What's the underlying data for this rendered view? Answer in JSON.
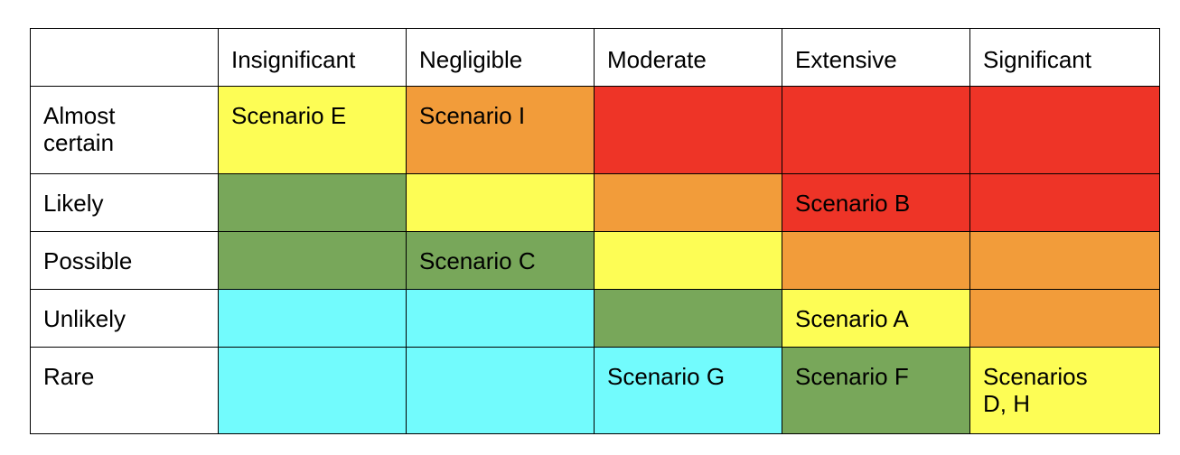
{
  "colors": {
    "red": "#ee3427",
    "orange": "#f29c3a",
    "yellow": "#fdfd55",
    "green": "#78a75a",
    "cyan": "#72fbfd",
    "white": "#ffffff"
  },
  "matrix": {
    "corner": "",
    "columns": [
      "Insignificant",
      "Negligible",
      "Moderate",
      "Extensive",
      "Significant"
    ],
    "rows": [
      {
        "label": "Almost certain",
        "cells": [
          {
            "text": "Scenario E",
            "color": "yellow"
          },
          {
            "text": "Scenario I",
            "color": "orange"
          },
          {
            "text": "",
            "color": "red"
          },
          {
            "text": "",
            "color": "red"
          },
          {
            "text": "",
            "color": "red"
          }
        ]
      },
      {
        "label": "Likely",
        "cells": [
          {
            "text": "",
            "color": "green"
          },
          {
            "text": "",
            "color": "yellow"
          },
          {
            "text": "",
            "color": "orange"
          },
          {
            "text": "Scenario B",
            "color": "red"
          },
          {
            "text": "",
            "color": "red"
          }
        ]
      },
      {
        "label": "Possible",
        "cells": [
          {
            "text": "",
            "color": "green"
          },
          {
            "text": "Scenario C",
            "color": "green"
          },
          {
            "text": "",
            "color": "yellow"
          },
          {
            "text": "",
            "color": "orange"
          },
          {
            "text": "",
            "color": "orange"
          }
        ]
      },
      {
        "label": "Unlikely",
        "cells": [
          {
            "text": "",
            "color": "cyan"
          },
          {
            "text": "",
            "color": "cyan"
          },
          {
            "text": "",
            "color": "green"
          },
          {
            "text": "Scenario A",
            "color": "yellow"
          },
          {
            "text": "",
            "color": "orange"
          }
        ]
      },
      {
        "label": "Rare",
        "cells": [
          {
            "text": "",
            "color": "cyan"
          },
          {
            "text": "",
            "color": "cyan"
          },
          {
            "text": "Scenario G",
            "color": "cyan"
          },
          {
            "text": "Scenario F",
            "color": "green"
          },
          {
            "text": "Scenarios D, H",
            "color": "yellow"
          }
        ]
      }
    ]
  }
}
